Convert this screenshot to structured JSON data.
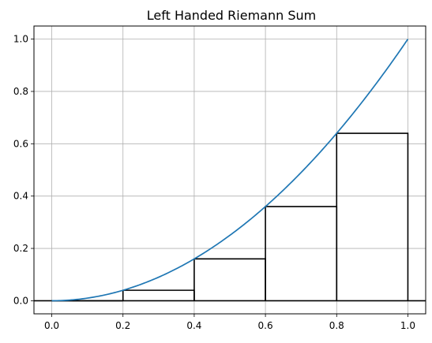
{
  "chart_data": {
    "type": "line",
    "title": "Left Handed Riemann Sum",
    "xlabel": "",
    "ylabel": "",
    "function": "x^2",
    "xlim": [
      -0.05,
      1.05
    ],
    "ylim": [
      -0.05,
      1.05
    ],
    "grid": true,
    "curve_color": "#1f77b4",
    "rectangle_color": "#000000",
    "x_ticks": [
      "0.0",
      "0.2",
      "0.4",
      "0.6",
      "0.8",
      "1.0"
    ],
    "y_ticks": [
      "0.0",
      "0.2",
      "0.4",
      "0.6",
      "0.8",
      "1.0"
    ],
    "series": [
      {
        "values": [
          {
            "x": 0.0,
            "y": 0.0
          },
          {
            "x": 0.2,
            "y": 0.04
          },
          {
            "x": 0.4,
            "y": 0.16
          },
          {
            "x": 0.6,
            "y": 0.36
          },
          {
            "x": 0.8,
            "y": 0.64
          },
          {
            "x": 1.0,
            "y": 1.0
          }
        ]
      }
    ],
    "rectangles": [
      {
        "x0": 0.0,
        "x1": 0.2,
        "height": 0.0
      },
      {
        "x0": 0.2,
        "x1": 0.4,
        "height": 0.04
      },
      {
        "x0": 0.4,
        "x1": 0.6,
        "height": 0.16
      },
      {
        "x0": 0.6,
        "x1": 0.8,
        "height": 0.36
      },
      {
        "x0": 0.8,
        "x1": 1.0,
        "height": 0.64
      }
    ]
  }
}
